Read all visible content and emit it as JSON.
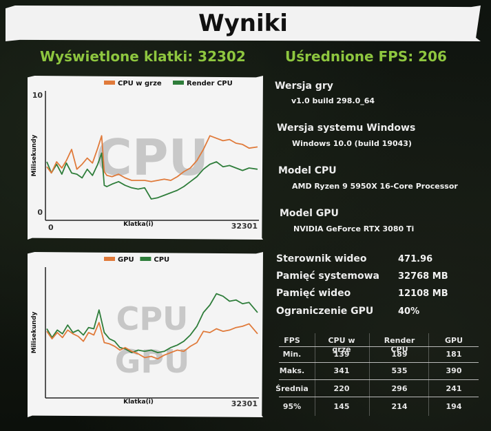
{
  "title": "Wyniki",
  "headline": {
    "frames_label": "Wyświetlone klatki: 32302",
    "fps_label": "Uśrednione FPS: 206"
  },
  "colors": {
    "accent_green": "#8ec63f",
    "series_orange": "#e07a3a",
    "series_green": "#2e7d3a"
  },
  "info": [
    {
      "label": "Wersja gry",
      "value": "v1.0 build 298.0_64"
    },
    {
      "label": "Wersja systemu Windows",
      "value": "Windows 10.0 (build 19043)"
    },
    {
      "label": "Model CPU",
      "value": "AMD Ryzen 9 5950X 16-Core Processor"
    },
    {
      "label": "Model GPU",
      "value": "NVIDIA GeForce RTX 3080 Ti"
    }
  ],
  "stats": [
    {
      "label": "Sterownik wideo",
      "value": "471.96"
    },
    {
      "label": "Pamięć systemowa",
      "value": "32768 MB"
    },
    {
      "label": "Pamięć wideo",
      "value": "12108 MB"
    },
    {
      "label": "Ograniczenie GPU",
      "value": "40%"
    }
  ],
  "fps_table": {
    "headers": [
      "FPS",
      "CPU w grze",
      "Render CPU",
      "GPU"
    ],
    "rows": [
      [
        "Min.",
        "139",
        "189",
        "181"
      ],
      [
        "Maks.",
        "341",
        "535",
        "390"
      ],
      [
        "Średnia",
        "220",
        "296",
        "241"
      ],
      [
        "95%",
        "145",
        "214",
        "194"
      ]
    ]
  },
  "chart_data": [
    {
      "type": "line",
      "watermark": "CPU",
      "ylabel": "Milisekundy",
      "xlabel": "Klatka(i)",
      "x_min_label": "0",
      "x_max_label": "32301",
      "y_top_label": "10",
      "y_bottom_label": "0",
      "xlim": [
        0,
        32301
      ],
      "ylim": [
        0,
        10
      ],
      "x": [
        0,
        700,
        1500,
        2300,
        3000,
        3800,
        4600,
        5400,
        6200,
        7000,
        7800,
        8400,
        8800,
        9200,
        10000,
        11000,
        12000,
        13000,
        14000,
        15000,
        16000,
        17000,
        18000,
        19000,
        20000,
        21000,
        22000,
        23000,
        24000,
        25000,
        26000,
        27000,
        28000,
        29000,
        30000,
        31000,
        32301
      ],
      "series": [
        {
          "name": "CPU w grze",
          "color": "#e07a3a",
          "values": [
            4.1,
            3.6,
            4.5,
            4.0,
            4.6,
            5.5,
            3.9,
            4.3,
            4.8,
            4.4,
            5.6,
            6.6,
            3.7,
            3.4,
            3.3,
            3.5,
            3.2,
            3.0,
            3.0,
            3.0,
            2.9,
            3.0,
            3.1,
            3.0,
            3.3,
            3.7,
            4.0,
            4.6,
            5.5,
            6.6,
            6.4,
            6.2,
            6.3,
            6.0,
            5.9,
            5.6,
            5.7
          ]
        },
        {
          "name": "Render CPU",
          "color": "#2e7d3a",
          "values": [
            4.5,
            3.6,
            4.3,
            3.5,
            4.4,
            3.6,
            3.5,
            3.2,
            3.9,
            3.4,
            4.3,
            5.2,
            2.6,
            2.5,
            2.7,
            2.9,
            2.6,
            2.4,
            2.3,
            2.4,
            1.5,
            1.6,
            1.8,
            2.0,
            2.2,
            2.5,
            2.9,
            3.3,
            3.9,
            4.3,
            4.5,
            4.1,
            4.2,
            4.0,
            3.8,
            4.0,
            3.9
          ]
        }
      ]
    },
    {
      "type": "line",
      "watermark": "CPU\nGPU",
      "ylabel": "Milisekundy",
      "xlabel": "Klatka(i)",
      "x_min_label": "",
      "x_max_label": "32301",
      "ylim": [
        0,
        10
      ],
      "xlim": [
        0,
        32301
      ],
      "x": [
        0,
        800,
        1600,
        2400,
        3200,
        4000,
        4800,
        5600,
        6400,
        7200,
        8000,
        8800,
        9600,
        10400,
        11200,
        12000,
        13000,
        14000,
        15000,
        16000,
        17000,
        18000,
        19000,
        20000,
        21000,
        22000,
        23000,
        24000,
        25000,
        26000,
        27000,
        28000,
        29000,
        30000,
        31000,
        32301
      ],
      "series": [
        {
          "name": "GPU",
          "color": "#e07a3a",
          "values": [
            5.1,
            4.5,
            5.0,
            4.6,
            5.2,
            4.9,
            4.7,
            4.3,
            5.0,
            4.8,
            5.8,
            4.2,
            4.1,
            3.9,
            3.6,
            3.8,
            3.5,
            3.3,
            3.0,
            3.1,
            2.9,
            3.2,
            3.4,
            3.6,
            3.5,
            3.9,
            4.2,
            5.1,
            5.0,
            5.3,
            5.1,
            5.2,
            5.4,
            5.5,
            5.7,
            4.9
          ]
        },
        {
          "name": "CPU",
          "color": "#2e7d3a",
          "values": [
            5.3,
            4.6,
            5.2,
            4.9,
            5.6,
            5.0,
            5.2,
            4.8,
            5.4,
            5.3,
            6.8,
            5.0,
            4.5,
            4.3,
            3.8,
            3.7,
            3.4,
            3.6,
            3.5,
            3.6,
            3.4,
            3.5,
            3.8,
            4.0,
            4.3,
            4.8,
            5.5,
            6.6,
            7.2,
            8.1,
            7.9,
            7.5,
            7.6,
            7.3,
            7.4,
            6.6
          ]
        }
      ]
    }
  ]
}
